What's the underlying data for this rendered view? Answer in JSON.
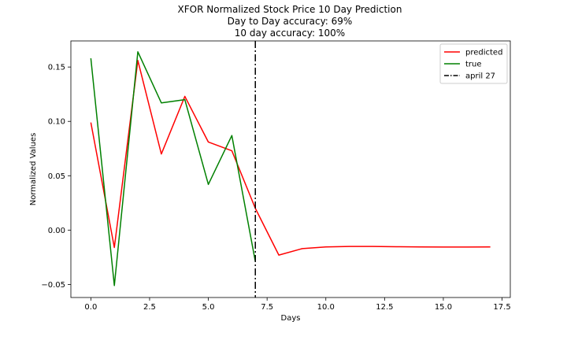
{
  "chart_data": {
    "type": "line",
    "title_lines": [
      "XFOR Normalized Stock Price 10 Day Prediction",
      "Day to Day accuracy: 69%",
      "10 day accuracy: 100%"
    ],
    "xlabel": "Days",
    "ylabel": "Normalized Values",
    "xlim": [
      -0.85,
      17.85
    ],
    "ylim": [
      -0.062,
      0.174
    ],
    "xticks": [
      0.0,
      2.5,
      5.0,
      7.5,
      10.0,
      12.5,
      15.0,
      17.5
    ],
    "xtick_labels": [
      "0.0",
      "2.5",
      "5.0",
      "7.5",
      "10.0",
      "12.5",
      "15.0",
      "17.5"
    ],
    "yticks": [
      -0.05,
      0.0,
      0.05,
      0.1,
      0.15
    ],
    "ytick_labels": [
      "−0.05",
      "0.00",
      "0.05",
      "0.10",
      "0.15"
    ],
    "grid": false,
    "legend_position": "top-right",
    "series": [
      {
        "name": "predicted",
        "color": "#ff0000",
        "x": [
          0,
          1,
          2,
          3,
          4,
          5,
          6,
          7,
          8,
          9,
          10,
          11,
          12,
          13,
          14,
          15,
          16,
          17
        ],
        "y": [
          0.099,
          -0.016,
          0.156,
          0.07,
          0.123,
          0.081,
          0.073,
          0.02,
          -0.023,
          -0.017,
          -0.0155,
          -0.015,
          -0.015,
          -0.0153,
          -0.0155,
          -0.0156,
          -0.0156,
          -0.0155
        ]
      },
      {
        "name": "true",
        "color": "#008000",
        "x": [
          0,
          1,
          2,
          3,
          4,
          5,
          6,
          7
        ],
        "y": [
          0.158,
          -0.051,
          0.164,
          0.117,
          0.12,
          0.042,
          0.087,
          -0.029
        ]
      }
    ],
    "vline": {
      "name": "april 27",
      "x": 7,
      "color": "#000000",
      "style": "dashdot"
    }
  }
}
